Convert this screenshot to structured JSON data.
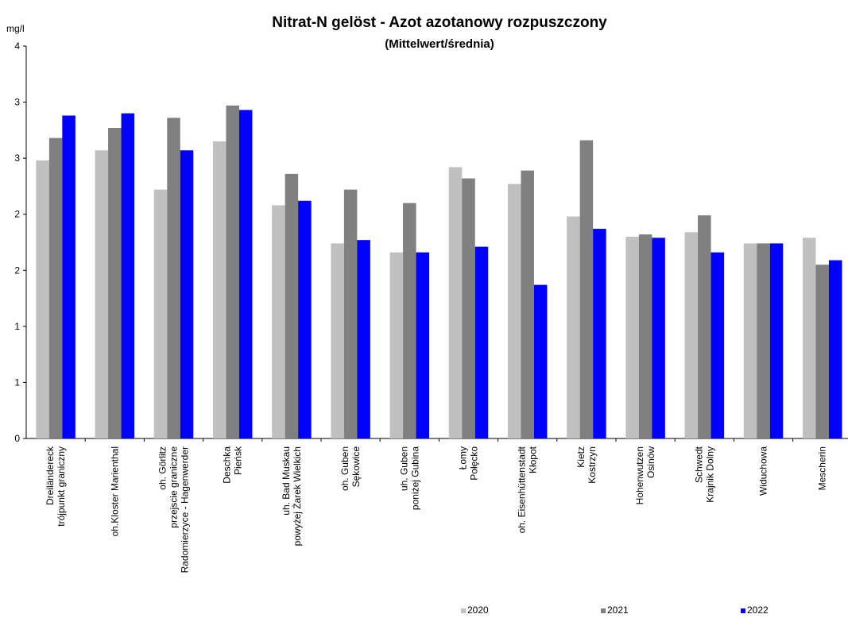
{
  "chart_data": {
    "type": "bar",
    "title": "Nitrat-N  gelöst  - Azot azotanowy rozpuszczony",
    "subtitle": "(Mittelwert/średnia)",
    "y_label": "mg/l",
    "categories": [
      [
        "Dreiländereck",
        "trójpunkt graniczny"
      ],
      [
        "oh.Kloster Marienthal"
      ],
      [
        "oh. Görlitz",
        "przejscie graniczne",
        "Radomierzyce - Hagenwerder"
      ],
      [
        "Deschka",
        "Pieńsk"
      ],
      [
        "uh. Bad Muskau",
        "powyżej Żarek Wielkich"
      ],
      [
        "oh. Guben",
        "Sękowice"
      ],
      [
        "uh. Guben",
        "poniżej Gubina"
      ],
      [
        "Łomy",
        "Połęcko"
      ],
      [
        "oh. Eisenhüttenstadt",
        "Kłopot"
      ],
      [
        "Kietz",
        "Kostrzyn"
      ],
      [
        "Hohenwutzen",
        "Osinów"
      ],
      [
        "Schwedt",
        "Krajnik Dolny"
      ],
      [
        "Widuchowa"
      ],
      [
        "Mescherin"
      ]
    ],
    "series": [
      {
        "name": "2020",
        "color": "#c0c0c0",
        "values": [
          2.48,
          2.57,
          2.22,
          2.65,
          2.08,
          1.74,
          1.66,
          2.42,
          2.27,
          1.98,
          1.8,
          1.84,
          1.74,
          1.79
        ]
      },
      {
        "name": "2021",
        "color": "#808080",
        "values": [
          2.68,
          2.77,
          2.86,
          2.97,
          2.36,
          2.22,
          2.1,
          2.32,
          2.39,
          2.66,
          1.82,
          1.99,
          1.74,
          1.55
        ]
      },
      {
        "name": "2022",
        "color": "#0000ff",
        "values": [
          2.88,
          2.9,
          2.57,
          2.93,
          2.12,
          1.77,
          1.66,
          1.71,
          1.37,
          1.87,
          1.79,
          1.66,
          1.74,
          1.59
        ]
      }
    ],
    "ylim": [
      0,
      3.5
    ],
    "yticks": [
      0,
      {
        "value": 0.5,
        "label": "1"
      },
      1,
      {
        "value": 1.5,
        "label": "2"
      },
      2,
      {
        "value": 2.5,
        "label": "3"
      },
      3,
      {
        "value": 3.5,
        "label": "4"
      }
    ],
    "grid": false,
    "legend": "bottom"
  }
}
